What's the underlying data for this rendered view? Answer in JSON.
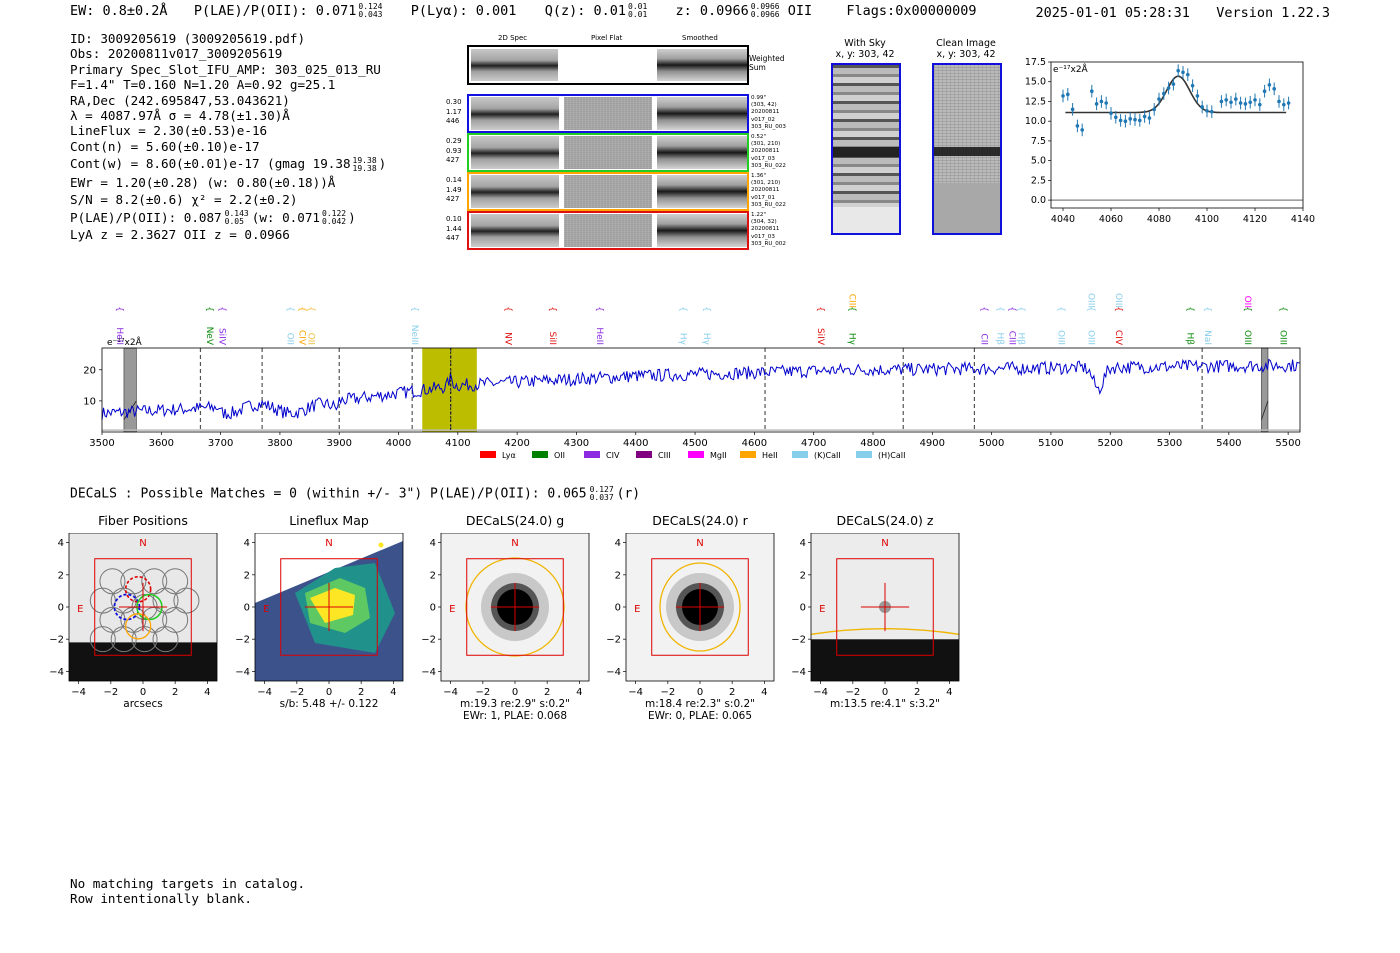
{
  "header": {
    "ew": "EW: 0.8±0.2Å",
    "plae_label": "P(LAE)/P(OII): 0.071",
    "plae_hi": "0.124",
    "plae_lo": "0.043",
    "plya": "P(Lyα): 0.001",
    "qz_label": "Q(z): 0.01",
    "qz_hi": "0.01",
    "qz_lo": "0.01",
    "z_label": "z: 0.0966",
    "z_hi": "0.0966",
    "z_lo": "0.0966",
    "z_line": "OII",
    "flags": "Flags:0x00000009",
    "datetime": "2025-01-01 05:28:31",
    "version": "Version 1.22.3"
  },
  "info": {
    "id": "ID: 3009205619 (3009205619.pdf)",
    "obs": "Obs: 20200811v017_3009205619",
    "primary": "Primary Spec_Slot_IFU_AMP: 303_025_013_RU",
    "params": "F=1.4\"  T=0.160  N=1.20  A=0.92  g=25.1",
    "radec": "RA,Dec (242.695847,53.043621)",
    "lambda": "λ = 4087.97Å   σ = 4.78(±1.30)Å",
    "lineflux": "LineFlux = 2.30(±0.53)e-16",
    "contn": "Cont(n) = 5.60(±0.10)e-17",
    "contw": "Cont(w) = 8.60(±0.01)e-17 (gmag 19.38",
    "gmag_hi": "19.38",
    "gmag_lo": "19.38",
    "ewr": "EWr = 1.20(±0.28) (w: 0.80(±0.18))Å",
    "sn": "S/N = 8.2(±0.6)  χ² = 2.2(±0.2)",
    "plae": "P(LAE)/P(OII): 0.087",
    "plae_hi": "0.143",
    "plae_lo": "0.05",
    "plae_w": "(w: 0.071",
    "plae_w_hi": "0.122",
    "plae_w_lo": "0.042",
    "lya_z": "LyA z = 2.3627   OII z = 0.0966"
  },
  "cutouts": {
    "col_headers": [
      "2D Spec",
      "Pixel Flat",
      "Smoothed"
    ],
    "weighted_label": "Weighted Sum",
    "rows": [
      {
        "left": [
          "0.30",
          "1.17",
          "446"
        ],
        "right": [
          "0.99\"",
          "(303, 42)",
          "20200811",
          "v017_02",
          "303_RU_003"
        ],
        "color": "#1010e0"
      },
      {
        "left": [
          "0.29",
          "0.93",
          "427"
        ],
        "right": [
          "0.52\"",
          "(301, 210)",
          "20200811",
          "v017_03",
          "303_RU_022"
        ],
        "color": "#22cc22"
      },
      {
        "left": [
          "0.14",
          "1.49",
          "427"
        ],
        "right": [
          "1.36\"",
          "(301, 210)",
          "20200811",
          "v017_01",
          "303_RU_022"
        ],
        "color": "#ffa500"
      },
      {
        "left": [
          "0.10",
          "1.44",
          "447"
        ],
        "right": [
          "1.22\"",
          "(304, 32)",
          "20200811",
          "v017_03",
          "303_RU_002"
        ],
        "color": "#e01010"
      }
    ]
  },
  "sky": {
    "with_sky_title": "With Sky",
    "with_sky_sub": "x, y: 303, 42",
    "clean_title": "Clean Image",
    "clean_sub": "x, y: 303, 42"
  },
  "colors": {
    "spectrum": "#0000cc",
    "fit_points": "#1f77b4",
    "highlight": "#bdbd00",
    "box_red": "#dd0000",
    "ellipse": "#f0b400"
  },
  "zoom_chart": {
    "type": "scatter",
    "unit_label": "e⁻¹⁷x2Å",
    "xlim": [
      4035,
      4140
    ],
    "ylim": [
      -1,
      17.5
    ],
    "xticks": [
      "4040",
      "4060",
      "4080",
      "4100",
      "4120",
      "4140"
    ],
    "yticks": [
      "0.0",
      "2.5",
      "5.0",
      "7.5",
      "10.0",
      "12.5",
      "15.0",
      "17.5"
    ],
    "points_x": [
      4040,
      4042,
      4044,
      4046,
      4048,
      4052,
      4054,
      4056,
      4058,
      4060,
      4062,
      4064,
      4066,
      4068,
      4070,
      4072,
      4074,
      4076,
      4078,
      4080,
      4082,
      4084,
      4086,
      4088,
      4090,
      4092,
      4094,
      4096,
      4098,
      4100,
      4102,
      4106,
      4108,
      4110,
      4112,
      4114,
      4116,
      4118,
      4120,
      4122,
      4124,
      4126,
      4128,
      4130,
      4132,
      4134
    ],
    "points_y": [
      13.2,
      13.4,
      11.5,
      9.4,
      8.9,
      13.8,
      12.2,
      12.5,
      12.3,
      11.0,
      10.5,
      10.1,
      10.0,
      10.3,
      10.2,
      10.1,
      10.6,
      10.4,
      11.5,
      12.8,
      13.5,
      14.2,
      14.7,
      16.4,
      16.2,
      15.9,
      14.5,
      13.2,
      11.8,
      11.3,
      11.2,
      12.5,
      12.7,
      12.4,
      12.8,
      12.3,
      12.2,
      12.4,
      12.7,
      12.1,
      13.8,
      14.6,
      14.1,
      12.5,
      12.1,
      12.3
    ],
    "fit_continuum": 11.1,
    "fit_center": 4088,
    "fit_sigma": 4.8,
    "fit_amp": 4.6
  },
  "spectrum_chart": {
    "type": "line",
    "unit_label": "e⁻¹⁷x2Å",
    "xlim": [
      3500,
      5520
    ],
    "ylim": [
      0,
      27
    ],
    "xticks": [
      "3500",
      "3600",
      "3700",
      "3800",
      "3900",
      "4000",
      "4100",
      "4200",
      "4300",
      "4400",
      "4500",
      "4600",
      "4700",
      "4800",
      "4900",
      "5000",
      "5100",
      "5200",
      "5300",
      "5400",
      "5500"
    ],
    "yticks": [
      "10",
      "20"
    ],
    "highlight_range": [
      4040,
      4132
    ],
    "line_marker": 4088,
    "grey_bands": [
      [
        3537,
        3558
      ],
      [
        5455,
        5466
      ]
    ],
    "dashed_lines": [
      3666,
      3770,
      3900,
      4023,
      4088,
      4618,
      4851,
      4971,
      5355
    ],
    "line_labels": [
      {
        "x": 3520,
        "text": "HeII",
        "color": "#8a2be2",
        "row": 0
      },
      {
        "x": 3672,
        "text": "NeV",
        "color": "#0a8a0a",
        "row": 0
      },
      {
        "x": 3693,
        "text": "SiIV",
        "color": "#8a2be2",
        "row": 0
      },
      {
        "x": 3808,
        "text": "OII",
        "color": "#87ceeb",
        "row": 0
      },
      {
        "x": 3828,
        "text": "CIV",
        "color": "#ffa500",
        "row": 0
      },
      {
        "x": 3843,
        "text": "OII",
        "color": "#f0c040",
        "row": 0
      },
      {
        "x": 4018,
        "text": "NeIII",
        "color": "#87ceeb",
        "row": 0
      },
      {
        "x": 4175,
        "text": "NV",
        "color": "#e01010",
        "row": 0
      },
      {
        "x": 4250,
        "text": "SiII",
        "color": "#e01010",
        "row": 0
      },
      {
        "x": 4330,
        "text": "HeII",
        "color": "#8a2be2",
        "row": 0
      },
      {
        "x": 4470,
        "text": "Hγ",
        "color": "#87ceeb",
        "row": 0
      },
      {
        "x": 4510,
        "text": "Hγ",
        "color": "#87ceeb",
        "row": 0
      },
      {
        "x": 4702,
        "text": "SiIV",
        "color": "#e01010",
        "row": 0
      },
      {
        "x": 4755,
        "text": "Hγ",
        "color": "#0a8a0a",
        "row": 0
      },
      {
        "x": 4755,
        "text": "CIII",
        "color": "#ffa500",
        "row": 1
      },
      {
        "x": 4978,
        "text": "CII",
        "color": "#8a2be2",
        "row": 0
      },
      {
        "x": 5005,
        "text": "Hβ",
        "color": "#87ceeb",
        "row": 0
      },
      {
        "x": 5025,
        "text": "CIII",
        "color": "#8a2be2",
        "row": 0
      },
      {
        "x": 5040,
        "text": "Hβ",
        "color": "#87ceeb",
        "row": 0
      },
      {
        "x": 5108,
        "text": "OIII",
        "color": "#87ceeb",
        "row": 0
      },
      {
        "x": 5158,
        "text": "OIII",
        "color": "#87ceeb",
        "row": 0
      },
      {
        "x": 5158,
        "text": "OIII",
        "color": "#87ceeb",
        "row": 1
      },
      {
        "x": 5205,
        "text": "CIV",
        "color": "#e01010",
        "row": 0
      },
      {
        "x": 5205,
        "text": "OIII",
        "color": "#87ceeb",
        "row": 1
      },
      {
        "x": 5325,
        "text": "Hβ",
        "color": "#0a8a0a",
        "row": 0
      },
      {
        "x": 5355,
        "text": "NaI",
        "color": "#87ceeb",
        "row": 0
      },
      {
        "x": 5422,
        "text": "OIII",
        "color": "#0a8a0a",
        "row": 0
      },
      {
        "x": 5422,
        "text": "OII",
        "color": "#ff00ff",
        "row": 1
      },
      {
        "x": 5482,
        "text": "OIII",
        "color": "#0a8a0a",
        "row": 0
      }
    ],
    "legend": [
      {
        "label": "Lyα",
        "color": "#ff0000"
      },
      {
        "label": "OII",
        "color": "#008000"
      },
      {
        "label": "CIV",
        "color": "#8a2be2"
      },
      {
        "label": "CIII",
        "color": "#800080"
      },
      {
        "label": "MgII",
        "color": "#ff00ff"
      },
      {
        "label": "HeII",
        "color": "#ffa500"
      },
      {
        "label": "(K)CaII",
        "color": "#87ceeb"
      },
      {
        "label": "(H)CaII",
        "color": "#87ceeb"
      }
    ]
  },
  "decals": {
    "summary": "DECaLS : Possible Matches = 0 (within +/- 3\")  P(LAE)/P(OII): 0.065",
    "summary_hi": "0.127",
    "summary_lo": "0.037",
    "summary_band": "(r)",
    "axis_ticks": [
      "−4",
      "−2",
      "0",
      "2",
      "4"
    ],
    "north": "N",
    "east": "E",
    "panels": [
      {
        "title": "Fiber Positions",
        "caption1": "arcsecs",
        "caption2": ""
      },
      {
        "title": "Lineflux Map",
        "caption1": "s/b: 5.48 +/- 0.122",
        "caption2": ""
      },
      {
        "title": "DECaLS(24.0) g",
        "caption1": "m:19.3   re:2.9\"   s:0.2\"",
        "caption2": "EWr: 1, PLAE: 0.068"
      },
      {
        "title": "DECaLS(24.0) r",
        "caption1": "m:18.4   re:2.3\"   s:0.2\"",
        "caption2": "EWr: 0, PLAE: 0.065"
      },
      {
        "title": "DECaLS(24.0) z",
        "caption1": "m:13.5   re:4.1\"   s:3.2\"",
        "caption2": ""
      }
    ]
  },
  "footer": {
    "line1": "No matching targets in catalog.",
    "line2": "Row intentionally blank."
  }
}
